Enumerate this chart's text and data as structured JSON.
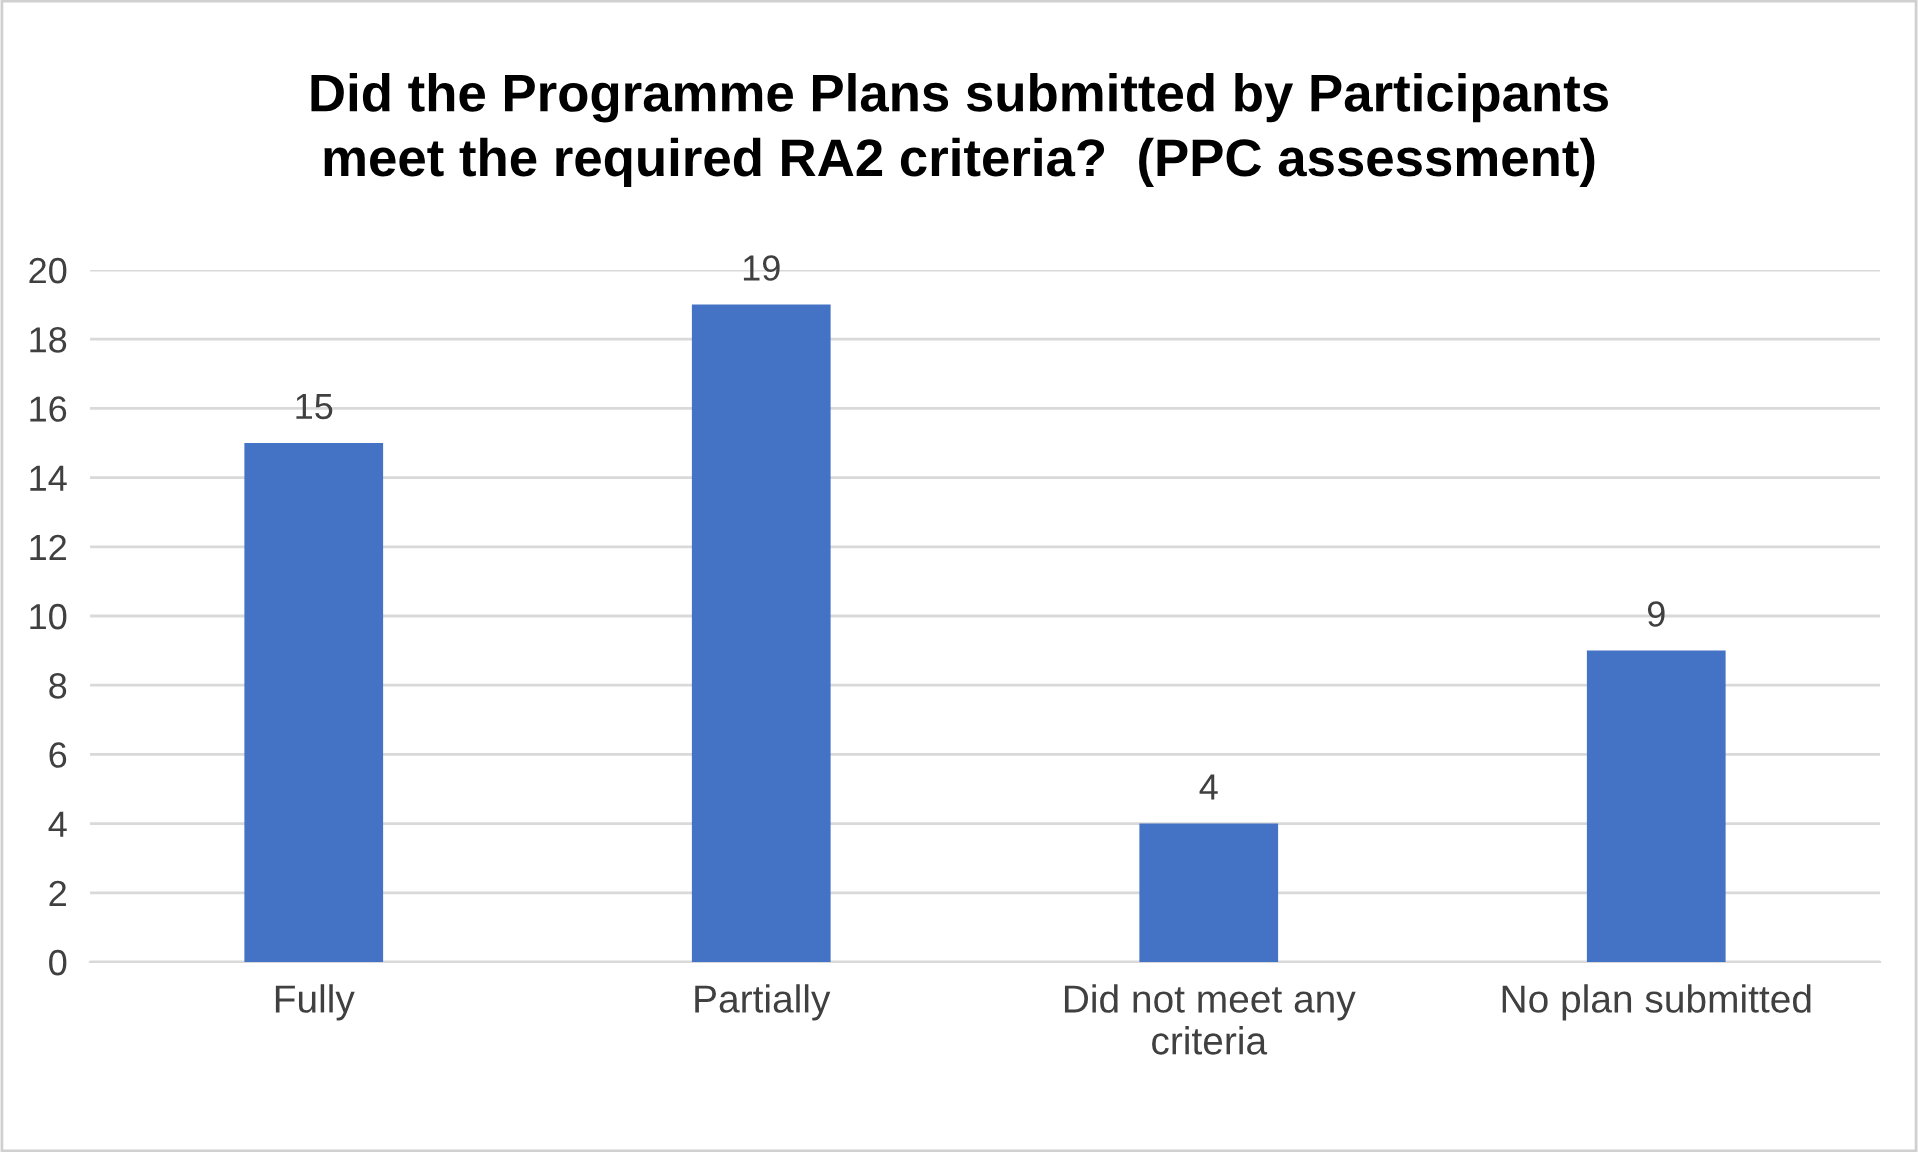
{
  "chart_data": {
    "type": "bar",
    "title": "Did the Programme Plans submitted by Participants\nmeet the required RA2 criteria?  (PPC assessment)",
    "categories": [
      "Fully",
      "Partially",
      "Did not meet any\ncriteria",
      "No plan submitted"
    ],
    "values": [
      15,
      19,
      4,
      9
    ],
    "color": "#4472c4",
    "ylim": [
      0,
      20
    ],
    "yticks": [
      0,
      2,
      4,
      6,
      8,
      10,
      12,
      14,
      16,
      18,
      20
    ],
    "grid": "y",
    "data_labels": true
  }
}
